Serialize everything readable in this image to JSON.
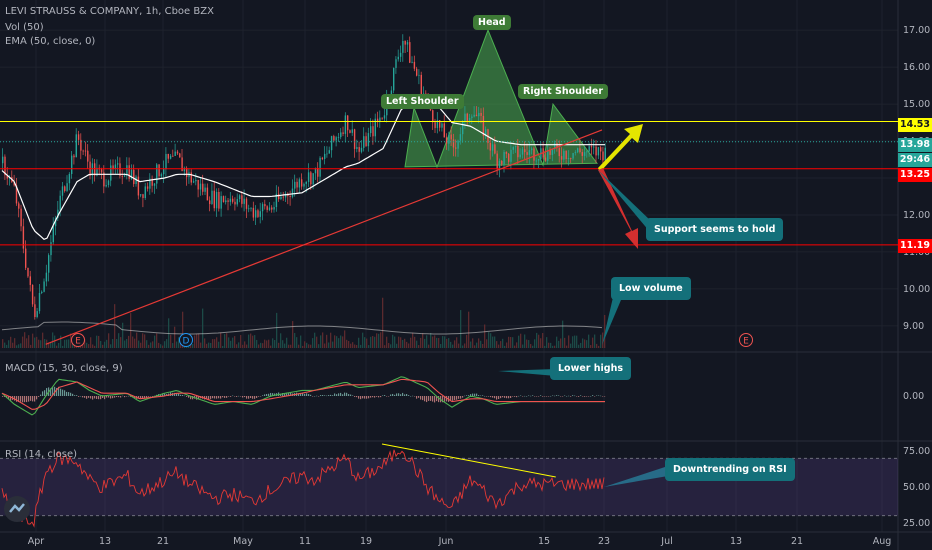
{
  "header": {
    "symbol_line": "LEVI STRAUSS & COMPANY, 1h, Cboe BZX",
    "vol_line": "Vol (50)",
    "ema_line": "EMA (50, close, 0)",
    "macd_line": "MACD (15, 30, close, 9)",
    "rsi_line": "RSI (14, close)"
  },
  "annotations": {
    "head": "Head",
    "left_shoulder": "Left Shoulder",
    "right_shoulder": "Right Shoulder",
    "support": "Support seems to hold",
    "low_volume": "Low volume",
    "lower_highs": "Lower highs",
    "downtrending_rsi": "Downtrending on RSI"
  },
  "price_tags": {
    "yellow": "14.53",
    "current": "13.98",
    "countdown": "29:46",
    "red_upper": "13.25",
    "red_lower": "11.19"
  },
  "earnings_markers": [
    "E",
    "D",
    "E"
  ],
  "colors": {
    "background": "#131722",
    "up": "#26a69a",
    "down": "#ef5350",
    "pattern_fill": "#4caf50",
    "yellow_line": "#ffff00",
    "red_line": "#ff0000",
    "macd_line": "#4caf50",
    "signal_line": "#ef5350",
    "rsi_line": "#e53935",
    "rsi_band": "#7e57c2"
  },
  "chart_data": [
    {
      "type": "line",
      "panel": "price",
      "title": "LEVI STRAUSS & COMPANY, 1h, Cboe BZX",
      "y_ticks": [
        9.0,
        10.0,
        11.0,
        12.0,
        13.0,
        14.0,
        15.0,
        16.0,
        17.0
      ],
      "ylim": [
        8.4,
        17.6
      ],
      "x_ticks": [
        "Apr",
        "13",
        "21",
        "May",
        "11",
        "19",
        "Jun",
        "15",
        "23",
        "Jul",
        "13",
        "21",
        "Aug"
      ],
      "series": [
        {
          "kind": "candles",
          "x": [
            "Apr 1",
            "Apr 3",
            "Apr 6",
            "Apr 8",
            "Apr 10",
            "Apr 13",
            "Apr 15",
            "Apr 17",
            "Apr 21",
            "Apr 23",
            "Apr 27",
            "Apr 29",
            "May 1",
            "May 5",
            "May 8",
            "May 11",
            "May 14",
            "May 19",
            "May 21",
            "May 26",
            "May 28",
            "Jun 1",
            "Jun 4",
            "Jun 8",
            "Jun 10",
            "Jun 12",
            "Jun 15",
            "Jun 17",
            "Jun 19",
            "Jun 23"
          ],
          "values": [
            13.4,
            12.6,
            9.3,
            10.6,
            12.3,
            14.1,
            13.3,
            13.0,
            13.3,
            12.6,
            13.4,
            13.5,
            13.0,
            12.4,
            12.5,
            12.1,
            12.2,
            13.0,
            13.1,
            14.6,
            13.7,
            14.8,
            16.8,
            15.0,
            14.3,
            13.8,
            14.9,
            14.3,
            13.5,
            13.7
          ]
        },
        {
          "name": "EMA (50, close, 0)",
          "values": [
            13.2,
            12.9,
            11.6,
            11.3,
            12.0,
            12.9,
            13.1,
            13.1,
            13.1,
            12.9,
            13.0,
            13.1,
            13.1,
            12.9,
            12.7,
            12.5,
            12.5,
            12.6,
            12.8,
            13.3,
            13.4,
            13.8,
            14.9,
            15.1,
            14.9,
            14.5,
            14.4,
            14.2,
            14.0,
            13.9
          ]
        }
      ],
      "hlines": [
        14.53,
        13.98,
        13.25,
        11.19
      ],
      "trendline": [
        {
          "x": "Apr 8",
          "y": 8.5
        },
        {
          "x": "Jul 6",
          "y": 14.3
        }
      ],
      "pattern": "head-and-shoulders"
    },
    {
      "type": "bar",
      "panel": "volume",
      "title": "Vol (50)"
    },
    {
      "type": "line",
      "panel": "macd",
      "title": "MACD (15, 30, close, 9)",
      "y_ticks": [
        0.0
      ],
      "series": [
        {
          "name": "MACD",
          "values": [
            0.1,
            -0.3,
            -0.7,
            0.0,
            0.6,
            0.5,
            0.2,
            0.0,
            0.1,
            -0.2,
            0.1,
            0.2,
            0.0,
            -0.3,
            -0.2,
            -0.3,
            0.0,
            0.2,
            0.2,
            0.5,
            0.3,
            0.4,
            0.7,
            0.3,
            -0.1,
            -0.4,
            0.0,
            -0.1,
            -0.3,
            -0.2
          ]
        },
        {
          "name": "Signal",
          "values": [
            0.1,
            -0.1,
            -0.5,
            -0.3,
            0.3,
            0.5,
            0.3,
            0.1,
            0.1,
            -0.1,
            0.0,
            0.1,
            0.1,
            -0.2,
            -0.2,
            -0.2,
            -0.1,
            0.1,
            0.2,
            0.4,
            0.4,
            0.4,
            0.6,
            0.5,
            0.1,
            -0.2,
            -0.1,
            -0.1,
            -0.2,
            -0.2
          ]
        }
      ]
    },
    {
      "type": "line",
      "panel": "rsi",
      "title": "RSI (14, close)",
      "y_ticks": [
        25.0,
        50.0,
        75.0
      ],
      "ylim": [
        20,
        80
      ],
      "band": [
        30,
        70
      ],
      "series": [
        {
          "name": "RSI",
          "values": [
            45,
            30,
            25,
            60,
            70,
            68,
            55,
            50,
            58,
            45,
            55,
            60,
            52,
            42,
            45,
            40,
            48,
            58,
            55,
            70,
            55,
            65,
            78,
            50,
            40,
            35,
            55,
            48,
            38,
            52
          ]
        }
      ],
      "trendline": [
        {
          "x": "Jun 4",
          "y": 80
        },
        {
          "x": "Jun 27",
          "y": 57
        }
      ]
    }
  ]
}
